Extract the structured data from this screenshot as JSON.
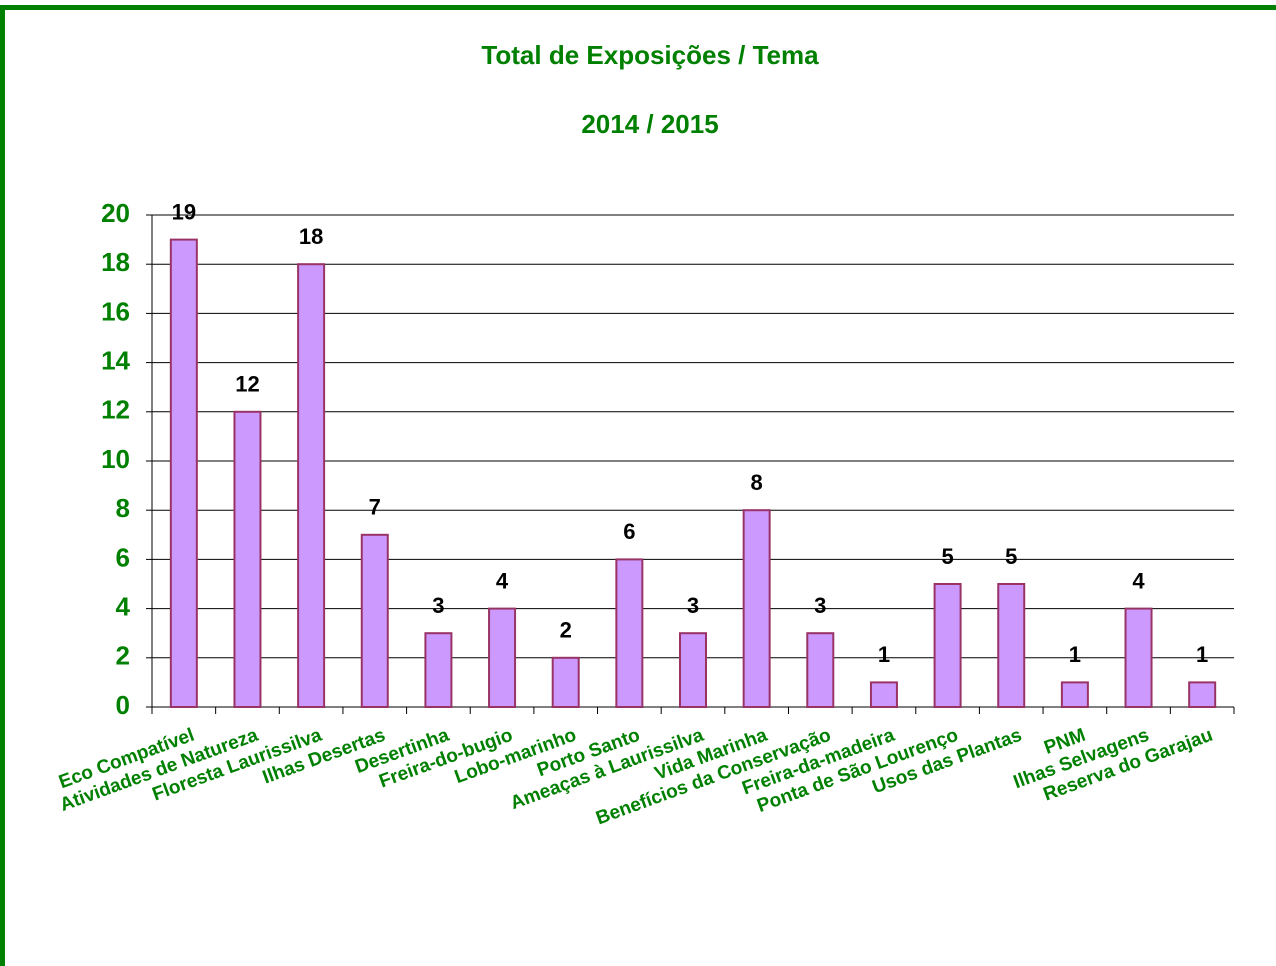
{
  "chart_data": {
    "type": "bar",
    "title": "Total de Exposições / Tema",
    "subtitle": "2014 / 2015",
    "categories": [
      "Eco Compatível",
      "Atividades de Natureza",
      "Floresta Laurissilva",
      "Ilhas Desertas",
      "Desertinha",
      "Freira-do-bugio",
      "Lobo-marinho",
      "Porto Santo",
      "Ameaças à Laurissilva",
      "Vida Marinha",
      "Benefícios da Conservação",
      "Freira-da-madeira",
      "Ponta de São Lourenço",
      "Usos das Plantas",
      "PNM",
      "Ilhas Selvagens",
      "Reserva do Garajau"
    ],
    "values": [
      19,
      12,
      18,
      7,
      3,
      4,
      2,
      6,
      3,
      8,
      3,
      1,
      5,
      5,
      1,
      4,
      1
    ],
    "color": "#cc99ff",
    "ylim": [
      0,
      20
    ],
    "yticks": [
      0,
      2,
      4,
      6,
      8,
      10,
      12,
      14,
      16,
      18,
      20
    ],
    "grid": true
  }
}
